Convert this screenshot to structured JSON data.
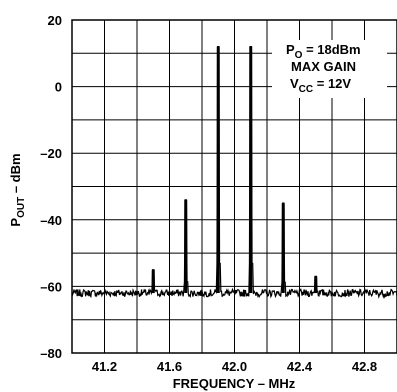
{
  "chart_data": {
    "type": "line",
    "title": "",
    "xlabel": "FREQUENCY – MHz",
    "ylabel": {
      "prefix": "P",
      "sub": "OUT",
      "suffix": " – dBm"
    },
    "xlim": [
      41.0,
      43.0
    ],
    "ylim": [
      -80,
      20
    ],
    "x_ticks": [
      41.2,
      41.6,
      42.0,
      42.4,
      42.8
    ],
    "x_tick_labels": [
      "41.2",
      "41.6",
      "42.0",
      "42.4",
      "42.8"
    ],
    "y_ticks": [
      20,
      0,
      -20,
      -40,
      -60,
      -80
    ],
    "y_tick_labels": [
      "20",
      "0",
      "–20",
      "–40",
      "–60",
      "–80"
    ],
    "grid": true,
    "x_grid_step": 0.2,
    "y_grid_step": 10,
    "noise_floor": -62,
    "series": [
      {
        "peaks": [
          {
            "x": 41.5,
            "y": -55
          },
          {
            "x": 41.7,
            "y": -34
          },
          {
            "x": 41.9,
            "y": 12
          },
          {
            "x": 42.1,
            "y": 12
          },
          {
            "x": 42.3,
            "y": -35
          },
          {
            "x": 42.5,
            "y": -57
          }
        ]
      }
    ],
    "annotation": [
      {
        "main": "P",
        "sub": "O",
        "rest": " = 18dBm"
      },
      {
        "main": "MAX GAIN",
        "sub": "",
        "rest": ""
      },
      {
        "main": "V",
        "sub": "CC",
        "rest": " = 12V"
      }
    ]
  }
}
